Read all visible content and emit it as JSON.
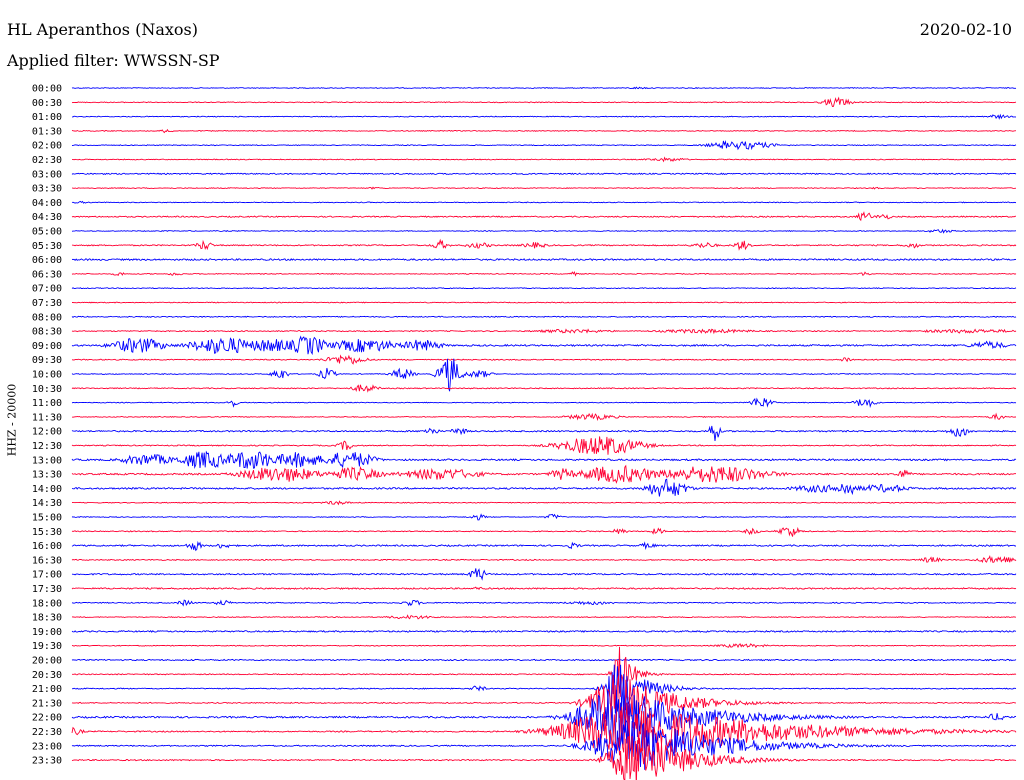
{
  "header": {
    "station": "HL Aperanthos (Naxos)",
    "filter": "Applied filter: WWSSN-SP",
    "date": "2020-02-10"
  },
  "ylabel": "HHZ - 20000",
  "colors": {
    "odd": "#0000ff",
    "even": "#ff0033"
  },
  "chart_data": {
    "type": "line",
    "title": "HL Aperanthos (Naxos)",
    "subtitle": "Applied filter: WWSSN-SP",
    "ylabel": "HHZ - 20000",
    "x_unit": "fraction of 30-minute trace",
    "traces": [
      {
        "time": "00:00",
        "base": 0.4,
        "events": [
          {
            "x": 0.6,
            "amp": 1,
            "w": 0.01
          }
        ]
      },
      {
        "time": "00:30",
        "base": 0.4,
        "events": [
          {
            "x": 0.81,
            "amp": 5,
            "w": 0.01
          }
        ]
      },
      {
        "time": "01:00",
        "base": 0.4,
        "events": [
          {
            "x": 0.98,
            "amp": 2,
            "w": 0.01
          }
        ]
      },
      {
        "time": "01:30",
        "base": 0.4,
        "events": [
          {
            "x": 0.1,
            "amp": 2,
            "w": 0.005
          }
        ]
      },
      {
        "time": "02:00",
        "base": 0.4,
        "events": [
          {
            "x": 0.71,
            "amp": 4,
            "w": 0.025
          },
          {
            "x": 0.69,
            "amp": 5,
            "w": 0.003
          }
        ]
      },
      {
        "time": "02:30",
        "base": 0.4,
        "events": [
          {
            "x": 0.63,
            "amp": 2,
            "w": 0.015
          }
        ]
      },
      {
        "time": "03:00",
        "base": 0.6,
        "events": []
      },
      {
        "time": "03:30",
        "base": 0.4,
        "events": [
          {
            "x": 0.32,
            "amp": 1,
            "w": 0.005
          },
          {
            "x": 0.85,
            "amp": 1,
            "w": 0.005
          }
        ]
      },
      {
        "time": "04:00",
        "base": 0.4,
        "events": [
          {
            "x": 0.01,
            "amp": 1,
            "w": 0.01
          }
        ]
      },
      {
        "time": "04:30",
        "base": 0.6,
        "events": [
          {
            "x": 0.84,
            "amp": 5,
            "w": 0.006
          },
          {
            "x": 0.86,
            "amp": 3,
            "w": 0.006
          }
        ]
      },
      {
        "time": "05:00",
        "base": 0.4,
        "events": [
          {
            "x": 0.92,
            "amp": 2,
            "w": 0.01
          }
        ]
      },
      {
        "time": "05:30",
        "base": 0.6,
        "events": [
          {
            "x": 0.14,
            "amp": 5,
            "w": 0.006
          },
          {
            "x": 0.39,
            "amp": 5,
            "w": 0.006
          },
          {
            "x": 0.43,
            "amp": 3,
            "w": 0.01
          },
          {
            "x": 0.49,
            "amp": 3,
            "w": 0.01
          },
          {
            "x": 0.67,
            "amp": 3,
            "w": 0.01
          },
          {
            "x": 0.71,
            "amp": 5,
            "w": 0.006
          },
          {
            "x": 0.89,
            "amp": 3,
            "w": 0.006
          }
        ]
      },
      {
        "time": "06:00",
        "base": 0.8,
        "events": []
      },
      {
        "time": "06:30",
        "base": 0.4,
        "events": [
          {
            "x": 0.05,
            "amp": 2,
            "w": 0.005
          },
          {
            "x": 0.11,
            "amp": 2,
            "w": 0.005
          },
          {
            "x": 0.53,
            "amp": 2,
            "w": 0.005
          },
          {
            "x": 0.84,
            "amp": 2,
            "w": 0.005
          }
        ]
      },
      {
        "time": "07:00",
        "base": 0.4,
        "events": []
      },
      {
        "time": "07:30",
        "base": 0.4,
        "events": []
      },
      {
        "time": "08:00",
        "base": 0.5,
        "events": []
      },
      {
        "time": "08:30",
        "base": 0.5,
        "events": [
          {
            "x": 0.53,
            "amp": 2,
            "w": 0.03
          },
          {
            "x": 0.67,
            "amp": 2,
            "w": 0.04
          },
          {
            "x": 0.95,
            "amp": 2,
            "w": 0.04
          }
        ]
      },
      {
        "time": "09:00",
        "base": 0.8,
        "events": [
          {
            "x": 0.07,
            "amp": 8,
            "w": 0.02
          },
          {
            "x": 0.16,
            "amp": 9,
            "w": 0.025
          },
          {
            "x": 0.21,
            "amp": 7,
            "w": 0.02
          },
          {
            "x": 0.25,
            "amp": 10,
            "w": 0.015
          },
          {
            "x": 0.31,
            "amp": 7,
            "w": 0.025
          },
          {
            "x": 0.37,
            "amp": 6,
            "w": 0.015
          },
          {
            "x": 0.97,
            "amp": 4,
            "w": 0.015
          }
        ]
      },
      {
        "time": "09:30",
        "base": 0.5,
        "events": [
          {
            "x": 0.29,
            "amp": 5,
            "w": 0.015
          },
          {
            "x": 0.82,
            "amp": 3,
            "w": 0.005
          }
        ]
      },
      {
        "time": "10:00",
        "base": 0.4,
        "events": [
          {
            "x": 0.22,
            "amp": 6,
            "w": 0.006
          },
          {
            "x": 0.27,
            "amp": 6,
            "w": 0.006
          },
          {
            "x": 0.35,
            "amp": 6,
            "w": 0.008
          },
          {
            "x": 0.4,
            "amp": 18,
            "w": 0.008
          },
          {
            "x": 0.43,
            "amp": 4,
            "w": 0.01
          }
        ]
      },
      {
        "time": "10:30",
        "base": 0.5,
        "events": [
          {
            "x": 0.31,
            "amp": 4,
            "w": 0.01
          }
        ]
      },
      {
        "time": "11:00",
        "base": 0.4,
        "events": [
          {
            "x": 0.17,
            "amp": 4,
            "w": 0.004
          },
          {
            "x": 0.73,
            "amp": 6,
            "w": 0.008
          },
          {
            "x": 0.84,
            "amp": 5,
            "w": 0.008
          }
        ]
      },
      {
        "time": "11:30",
        "base": 0.4,
        "events": [
          {
            "x": 0.55,
            "amp": 3,
            "w": 0.02
          },
          {
            "x": 0.98,
            "amp": 3,
            "w": 0.006
          }
        ]
      },
      {
        "time": "12:00",
        "base": 0.7,
        "events": [
          {
            "x": 0.38,
            "amp": 4,
            "w": 0.006
          },
          {
            "x": 0.41,
            "amp": 4,
            "w": 0.006
          },
          {
            "x": 0.68,
            "amp": 12,
            "w": 0.004
          },
          {
            "x": 0.94,
            "amp": 6,
            "w": 0.008
          }
        ]
      },
      {
        "time": "12:30",
        "base": 0.5,
        "events": [
          {
            "x": 0.29,
            "amp": 5,
            "w": 0.006
          },
          {
            "x": 0.56,
            "amp": 10,
            "w": 0.03
          }
        ]
      },
      {
        "time": "13:00",
        "base": 0.8,
        "events": [
          {
            "x": 0.08,
            "amp": 6,
            "w": 0.02
          },
          {
            "x": 0.14,
            "amp": 9,
            "w": 0.02
          },
          {
            "x": 0.19,
            "amp": 10,
            "w": 0.02
          },
          {
            "x": 0.24,
            "amp": 8,
            "w": 0.02
          },
          {
            "x": 0.29,
            "amp": 8,
            "w": 0.02
          },
          {
            "x": 0.3,
            "amp": 8,
            "w": 0.015
          }
        ]
      },
      {
        "time": "13:30",
        "base": 0.8,
        "events": [
          {
            "x": 0.22,
            "amp": 8,
            "w": 0.03
          },
          {
            "x": 0.3,
            "amp": 7,
            "w": 0.02
          },
          {
            "x": 0.39,
            "amp": 6,
            "w": 0.03
          },
          {
            "x": 0.52,
            "amp": 6,
            "w": 0.01
          },
          {
            "x": 0.58,
            "amp": 9,
            "w": 0.03
          },
          {
            "x": 0.68,
            "amp": 9,
            "w": 0.04
          },
          {
            "x": 0.88,
            "amp": 5,
            "w": 0.006
          }
        ]
      },
      {
        "time": "14:00",
        "base": 0.8,
        "events": [
          {
            "x": 0.63,
            "amp": 10,
            "w": 0.015
          },
          {
            "x": 0.79,
            "amp": 4,
            "w": 0.02
          },
          {
            "x": 0.82,
            "amp": 7,
            "w": 0.01
          },
          {
            "x": 0.86,
            "amp": 4,
            "w": 0.02
          }
        ]
      },
      {
        "time": "14:30",
        "base": 0.4,
        "events": [
          {
            "x": 0.28,
            "amp": 2,
            "w": 0.01
          }
        ]
      },
      {
        "time": "15:00",
        "base": 0.4,
        "events": [
          {
            "x": 0.43,
            "amp": 3,
            "w": 0.006
          },
          {
            "x": 0.51,
            "amp": 3,
            "w": 0.006
          }
        ]
      },
      {
        "time": "15:30",
        "base": 0.5,
        "events": [
          {
            "x": 0.58,
            "amp": 3,
            "w": 0.006
          },
          {
            "x": 0.62,
            "amp": 3,
            "w": 0.006
          },
          {
            "x": 0.72,
            "amp": 3,
            "w": 0.006
          },
          {
            "x": 0.76,
            "amp": 6,
            "w": 0.008
          }
        ]
      },
      {
        "time": "16:00",
        "base": 0.7,
        "events": [
          {
            "x": 0.13,
            "amp": 5,
            "w": 0.006
          },
          {
            "x": 0.16,
            "amp": 3,
            "w": 0.006
          },
          {
            "x": 0.53,
            "amp": 3,
            "w": 0.006
          },
          {
            "x": 0.61,
            "amp": 3,
            "w": 0.006
          }
        ]
      },
      {
        "time": "16:30",
        "base": 0.5,
        "events": [
          {
            "x": 0.91,
            "amp": 3,
            "w": 0.008
          },
          {
            "x": 0.98,
            "amp": 4,
            "w": 0.015
          }
        ]
      },
      {
        "time": "17:00",
        "base": 0.7,
        "events": [
          {
            "x": 0.43,
            "amp": 7,
            "w": 0.006
          }
        ]
      },
      {
        "time": "17:30",
        "base": 0.7,
        "events": [
          {
            "x": 0.43,
            "amp": 2,
            "w": 0.004
          }
        ]
      },
      {
        "time": "18:00",
        "base": 0.5,
        "events": [
          {
            "x": 0.12,
            "amp": 3,
            "w": 0.006
          },
          {
            "x": 0.16,
            "amp": 3,
            "w": 0.006
          },
          {
            "x": 0.36,
            "amp": 3,
            "w": 0.008
          },
          {
            "x": 0.55,
            "amp": 2,
            "w": 0.02
          }
        ]
      },
      {
        "time": "18:30",
        "base": 0.4,
        "events": [
          {
            "x": 0.36,
            "amp": 2,
            "w": 0.02
          }
        ]
      },
      {
        "time": "19:00",
        "base": 0.7,
        "events": []
      },
      {
        "time": "19:30",
        "base": 0.4,
        "events": [
          {
            "x": 0.71,
            "amp": 2,
            "w": 0.02
          }
        ]
      },
      {
        "time": "20:00",
        "base": 0.6,
        "events": []
      },
      {
        "time": "20:30",
        "base": 0.5,
        "events": [
          {
            "x": 0.58,
            "amp": 30,
            "w": 0.005
          }
        ]
      },
      {
        "time": "21:00",
        "base": 0.5,
        "events": [
          {
            "x": 0.43,
            "amp": 3,
            "w": 0.006
          },
          {
            "x": 0.58,
            "amp": 30,
            "w": 0.01
          }
        ]
      },
      {
        "time": "21:30",
        "base": 0.5,
        "events": [
          {
            "x": 0.58,
            "amp": 30,
            "w": 0.02
          }
        ]
      },
      {
        "time": "22:00",
        "base": 0.8,
        "events": [
          {
            "x": 0.58,
            "amp": 30,
            "w": 0.03
          },
          {
            "x": 0.98,
            "amp": 4,
            "w": 0.008
          }
        ]
      },
      {
        "time": "22:30",
        "base": 0.6,
        "events": [
          {
            "x": 0.0,
            "amp": 4,
            "w": 0.008
          },
          {
            "x": 0.6,
            "amp": 30,
            "w": 0.05
          },
          {
            "x": 0.68,
            "amp": 3,
            "w": 0.05
          }
        ]
      },
      {
        "time": "23:00",
        "base": 0.6,
        "events": [
          {
            "x": 0.6,
            "amp": 30,
            "w": 0.03
          }
        ]
      },
      {
        "time": "23:30",
        "base": 0.6,
        "events": [
          {
            "x": 0.6,
            "amp": 30,
            "w": 0.02
          }
        ]
      }
    ]
  }
}
